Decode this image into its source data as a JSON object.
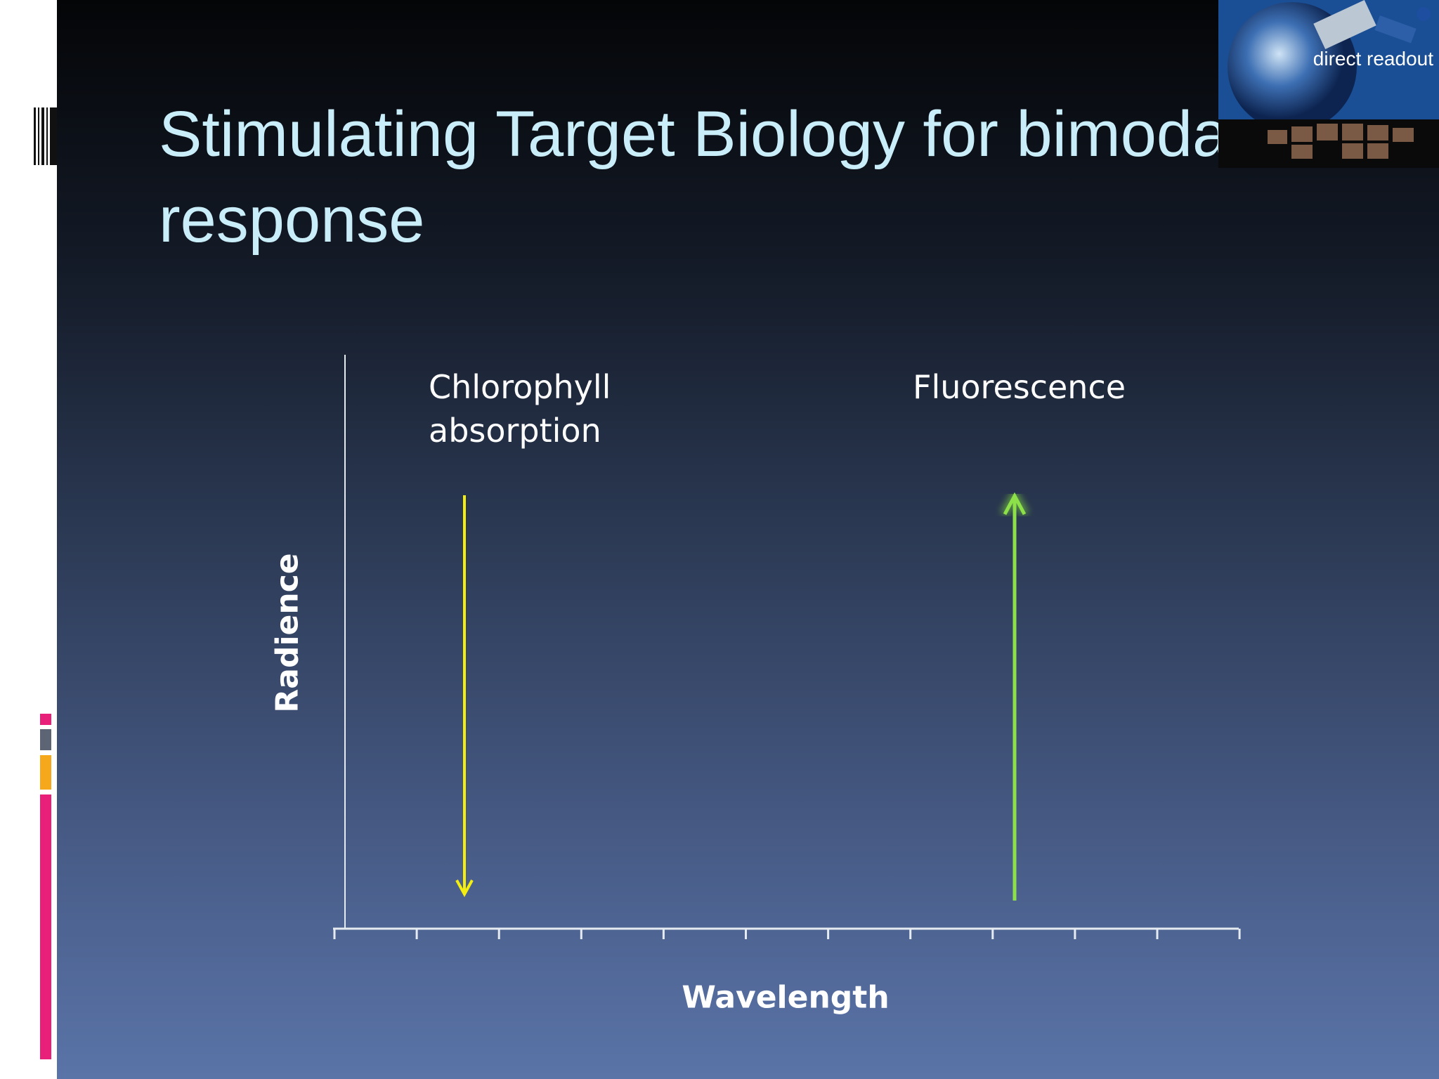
{
  "slide": {
    "title": "Stimulating Target Biology for bimodal response",
    "logo_caption": "direct readout",
    "diagram": {
      "y_axis_label": "Radience",
      "x_axis_label": "Wavelength",
      "labels": [
        "Chlorophyll absorption",
        "Fluorescence"
      ]
    }
  }
}
